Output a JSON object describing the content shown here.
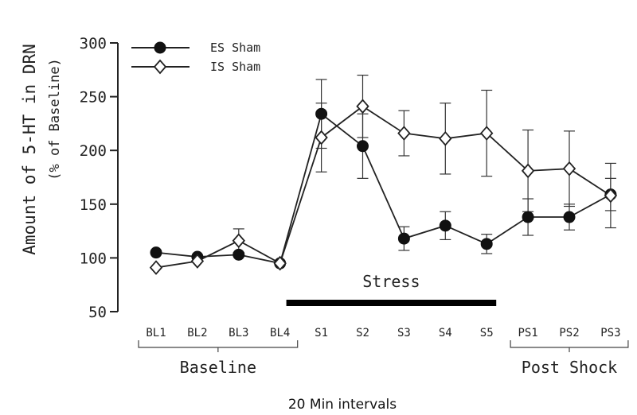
{
  "chart_data": {
    "type": "line",
    "ylabel": "Amount of 5-HT in DRN",
    "ylabel_sub": "(% of Baseline)",
    "xlabel": "20 Min intervals",
    "ylim": [
      50,
      300
    ],
    "yticks": [
      "50",
      "100",
      "150",
      "200",
      "250",
      "300"
    ],
    "categories": [
      "BL1",
      "BL2",
      "BL3",
      "BL4",
      "S1",
      "S2",
      "S3",
      "S4",
      "S5",
      "PS1",
      "PS2",
      "PS3"
    ],
    "groups": [
      {
        "label": "Baseline",
        "from": 0,
        "to": 3
      },
      {
        "label": "Post Shock",
        "from": 9,
        "to": 11
      }
    ],
    "stress_bar": {
      "label": "Stress",
      "from": 4,
      "to": 8
    },
    "legend_position": "top-left",
    "series": [
      {
        "name": "ES Sham",
        "marker": "filled-circle",
        "values": [
          105,
          101,
          103,
          95,
          234,
          204,
          118,
          130,
          113,
          138,
          138,
          159
        ],
        "error": [
          0,
          0,
          0,
          0,
          32,
          30,
          11,
          13,
          9,
          17,
          12,
          15
        ]
      },
      {
        "name": "IS Sham",
        "marker": "open-diamond",
        "values": [
          91,
          97,
          116,
          95,
          212,
          241,
          216,
          211,
          216,
          181,
          183,
          158
        ],
        "error": [
          0,
          0,
          11,
          0,
          32,
          29,
          21,
          33,
          40,
          38,
          35,
          30
        ]
      }
    ],
    "grid": false
  }
}
